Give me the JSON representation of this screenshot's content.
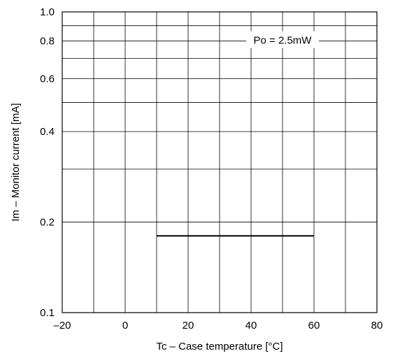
{
  "chart_data": {
    "type": "line",
    "xlabel": "Tc – Case temperature [°C]",
    "ylabel": "Im – Monitor current [mA]",
    "xlim": [
      -20,
      80
    ],
    "ylim": [
      0.1,
      1.0
    ],
    "yscale": "log",
    "grid": true,
    "x_ticks": [
      -20,
      0,
      20,
      40,
      60,
      80
    ],
    "x_tick_labels": [
      "–20",
      "0",
      "20",
      "40",
      "60",
      "80"
    ],
    "x_minor_grid": [
      -10,
      10,
      30,
      50,
      70
    ],
    "y_ticks": [
      0.1,
      0.2,
      0.4,
      0.6,
      0.8,
      1.0
    ],
    "y_tick_labels": [
      "0.1",
      "0.2",
      "0.4",
      "0.6",
      "0.8",
      "1.0"
    ],
    "y_minor_grid": [
      0.3,
      0.5,
      0.7,
      0.9
    ],
    "annotations": [
      {
        "text": "Po = 2.5mW",
        "x": 50,
        "y": 0.8
      }
    ],
    "series": [
      {
        "x": [
          10,
          60
        ],
        "y": [
          0.18,
          0.18
        ]
      }
    ]
  }
}
